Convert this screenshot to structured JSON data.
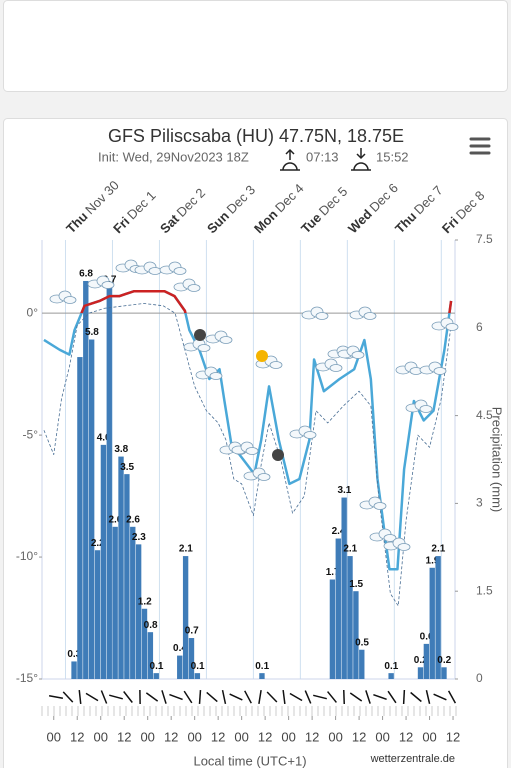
{
  "header": {
    "title": "GFS Piliscsaba (HU) 47.75N, 18.75E",
    "init": "Init: Wed, 29Nov2023 18Z",
    "sunrise": "07:13",
    "sunset": "15:52"
  },
  "chart_data": {
    "type": "combo",
    "xlim": [
      -12,
      199
    ],
    "xticks": [
      {
        "value": -6,
        "label": "00"
      },
      {
        "value": 6,
        "label": "12"
      },
      {
        "value": 18,
        "label": "00"
      },
      {
        "value": 30,
        "label": "12"
      },
      {
        "value": 42,
        "label": "00"
      },
      {
        "value": 54,
        "label": "12"
      },
      {
        "value": 66,
        "label": "00"
      },
      {
        "value": 78,
        "label": "12"
      },
      {
        "value": 90,
        "label": "00"
      },
      {
        "value": 102,
        "label": "12"
      },
      {
        "value": 114,
        "label": "00"
      },
      {
        "value": 126,
        "label": "12"
      },
      {
        "value": 138,
        "label": "00"
      },
      {
        "value": 150,
        "label": "12"
      },
      {
        "value": 162,
        "label": "00"
      },
      {
        "value": 174,
        "label": "12"
      },
      {
        "value": 186,
        "label": "00"
      },
      {
        "value": 198,
        "label": "12"
      }
    ],
    "day_labels": [
      {
        "x": 0,
        "day": "Thu",
        "date": "Nov 30"
      },
      {
        "x": 24,
        "day": "Fri",
        "date": "Dec 1"
      },
      {
        "x": 48,
        "day": "Sat",
        "date": "Dec 2"
      },
      {
        "x": 72,
        "day": "Sun",
        "date": "Dec 3"
      },
      {
        "x": 96,
        "day": "Mon",
        "date": "Dec 4"
      },
      {
        "x": 120,
        "day": "Tue",
        "date": "Dec 5"
      },
      {
        "x": 144,
        "day": "Wed",
        "date": "Dec 6"
      },
      {
        "x": 168,
        "day": "Thu",
        "date": "Dec 7"
      },
      {
        "x": 192,
        "day": "Fri",
        "date": "Dec 8"
      }
    ],
    "ylim": [
      -15,
      3
    ],
    "yticks": [
      {
        "value": 0,
        "label": "0°"
      },
      {
        "value": -5,
        "label": "-5°"
      },
      {
        "value": -10,
        "label": "-10°"
      },
      {
        "value": -15,
        "label": "-15°"
      }
    ],
    "y2lim": [
      0,
      7.5
    ],
    "y2ticks": [
      7.5,
      6,
      4.5,
      3,
      1.5,
      0
    ],
    "y2_label": "Precipitation (mm)",
    "x_label": "Local time (UTC+1)",
    "credit": "wetterzentrale.de",
    "series": [
      {
        "type": "bar",
        "axis": "y2",
        "color": "#3f7cb8",
        "x": [
          3,
          6,
          9,
          12,
          15,
          18,
          21,
          24,
          27,
          30,
          33,
          36,
          39,
          42,
          45,
          57,
          60,
          63,
          66,
          99,
          135,
          138,
          141,
          144,
          147,
          150,
          165,
          180,
          183,
          186,
          189,
          192
        ],
        "values": [
          0.3,
          5.5,
          6.8,
          5.8,
          2.2,
          4.0,
          6.7,
          2.6,
          3.8,
          3.5,
          2.6,
          2.3,
          1.2,
          0.8,
          0.1,
          0.4,
          2.1,
          0.7,
          0.1,
          0.1,
          1.7,
          2.4,
          3.1,
          2.1,
          1.5,
          0.5,
          0.1,
          0.2,
          0.6,
          1.9,
          2.1,
          0.2
        ],
        "value_labels": [
          "0.3",
          null,
          "6.8",
          "5.8",
          "2.2",
          "4.0",
          "6.7",
          "2.6",
          "3.8",
          "3.5",
          "2.6",
          "2.3",
          "1.2",
          "0.8",
          "0.1",
          "0.4",
          "2.1",
          "0.7",
          "0.1",
          "0.1",
          "1.7",
          "2.4",
          "3.1",
          "2.1",
          "1.5",
          "0.5",
          "0.1",
          "0.2",
          "0.6",
          "1.9",
          "2.1",
          "0.2"
        ]
      },
      {
        "type": "line",
        "color": "#4aa8d8",
        "above_zero_color": "#cc2222",
        "x": [
          -11,
          -3,
          2,
          4.6,
          9.7,
          17.4,
          22.5,
          27.6,
          35,
          43,
          50.6,
          55.7,
          61,
          63.3,
          68.4,
          73.5,
          78.7,
          81.2,
          84.8,
          88.9,
          96.5,
          100,
          104,
          109,
          114.4,
          119.5,
          124.6,
          127,
          132,
          140,
          147.5,
          152.7,
          156,
          159.4,
          165.5,
          169.6,
          173,
          178,
          183,
          188,
          193.6,
          197
        ],
        "values": [
          -1.1,
          -1.5,
          -1.7,
          -0.7,
          0.3,
          0.5,
          0.7,
          0.7,
          0.9,
          0.9,
          0.9,
          0.7,
          0.1,
          -0.7,
          -1.5,
          -2.7,
          -2.3,
          -3.6,
          -5.4,
          -5.8,
          -6.6,
          -5.2,
          -3,
          -5.2,
          -7,
          -6.8,
          -5.2,
          -1.9,
          -3.2,
          -2.7,
          -2.3,
          -1.1,
          -2.7,
          -6.8,
          -10.5,
          -10.5,
          -6.4,
          -3.6,
          -4.4,
          -4,
          -1.5,
          0.5
        ]
      },
      {
        "type": "line",
        "dashed": true,
        "color": "#4a6f95",
        "x": [
          -11,
          -6,
          -2,
          2,
          6,
          12,
          20,
          30,
          40,
          50,
          56,
          62,
          66,
          72,
          78,
          82,
          86,
          90,
          96,
          100,
          104,
          110,
          116,
          122,
          128,
          134,
          142,
          150,
          156,
          160,
          166,
          170,
          174,
          180,
          186,
          192,
          197
        ],
        "values": [
          -4.8,
          -5.8,
          -3.5,
          -2.2,
          -0.5,
          0,
          0.2,
          0.3,
          0.4,
          0.3,
          0,
          -1.8,
          -3,
          -4,
          -4.5,
          -5.2,
          -6.8,
          -7,
          -8.3,
          -6.2,
          -4.5,
          -6,
          -8.2,
          -7.5,
          -4,
          -4.5,
          -3.8,
          -3.2,
          -3.8,
          -7.5,
          -11.5,
          -12,
          -8.5,
          -5,
          -5.5,
          -3.5,
          -0.5
        ]
      }
    ]
  }
}
